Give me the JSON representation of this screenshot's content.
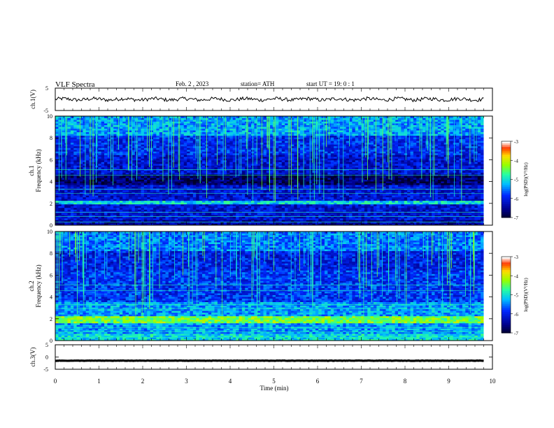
{
  "header": {
    "title": "VLF  Spectra",
    "date": "Feb. 2  , 2023",
    "station": "station= ATH",
    "start": "start  UT  =    19: 0   : 1"
  },
  "chart_data": [
    {
      "type": "line",
      "panel": "ch1-waveform",
      "ylabel": "ch.1(V)",
      "ylim": [
        -5,
        5
      ],
      "yticks": [
        "5",
        "-5"
      ],
      "xlim": [
        0,
        10
      ],
      "x_end_data": 9.8,
      "baseline_value": 0.0,
      "color": "#000000"
    },
    {
      "type": "heatmap",
      "panel": "ch1-spectrogram",
      "ylabel": "ch.1\nFrequency (kHz)",
      "ylim": [
        0,
        10
      ],
      "yticks": [
        "0",
        "2",
        "4",
        "6",
        "8",
        "10"
      ],
      "xlim": [
        0,
        10
      ],
      "x_end_data": 9.8,
      "colorbar_label": "log(PSD)(V²/Hz)",
      "colorbar_ticks": [
        "-3",
        "-4",
        "-5",
        "-6",
        "-7"
      ],
      "colorbar_range": [
        -7,
        -3
      ]
    },
    {
      "type": "heatmap",
      "panel": "ch2-spectrogram",
      "ylabel": "ch.2\nFrequency (kHz)",
      "ylim": [
        0,
        10
      ],
      "yticks": [
        "0",
        "2",
        "4",
        "6",
        "8",
        "10"
      ],
      "xlim": [
        0,
        10
      ],
      "x_end_data": 9.8,
      "colorbar_label": "log(PSD)(V²/Hz)",
      "colorbar_ticks": [
        "-3",
        "-4",
        "-5",
        "-6",
        "-7"
      ],
      "colorbar_range": [
        -7,
        -3
      ]
    },
    {
      "type": "line",
      "panel": "ch3-waveform",
      "ylabel": "ch.3(V)",
      "ylim": [
        -5,
        5
      ],
      "yticks": [
        "5",
        "0",
        "-5"
      ],
      "xlim": [
        0,
        10
      ],
      "x_end_data": 9.8,
      "baseline_value": -1.5,
      "color": "#000000"
    }
  ],
  "xaxis": {
    "label": "Time  (min)",
    "ticks": [
      "0",
      "1",
      "2",
      "3",
      "4",
      "5",
      "6",
      "7",
      "8",
      "9",
      "10"
    ]
  }
}
